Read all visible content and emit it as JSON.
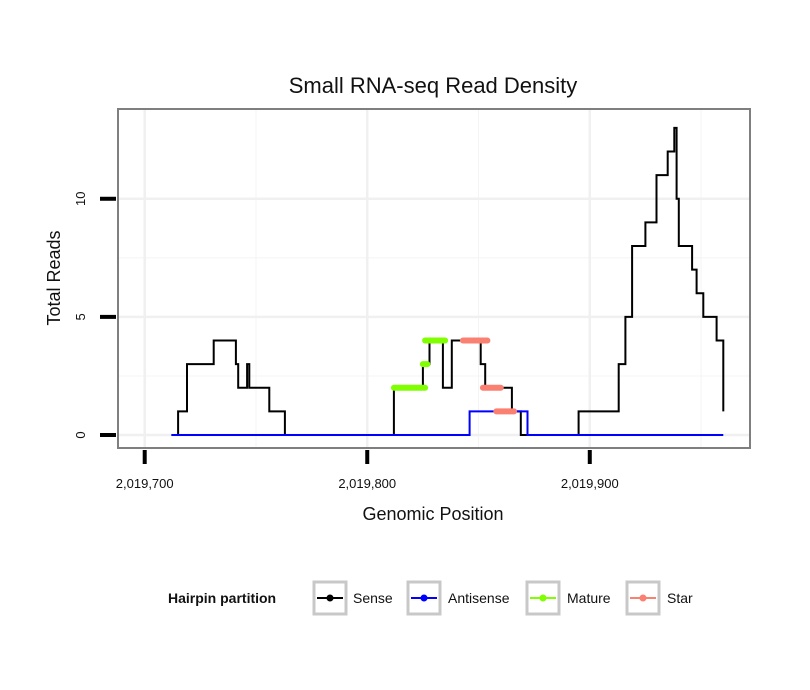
{
  "chart_data": {
    "type": "line",
    "title": "Small RNA-seq Read Density",
    "xlabel": "Genomic Position",
    "ylabel": "Total Reads",
    "xlim": [
      2019688,
      2019972
    ],
    "ylim": [
      -0.55,
      13.8
    ],
    "x_ticks": [
      {
        "value": 2019700,
        "label": "2,019,700"
      },
      {
        "value": 2019800,
        "label": "2,019,800"
      },
      {
        "value": 2019900,
        "label": "2,019,900"
      }
    ],
    "y_ticks": [
      {
        "value": 0,
        "label": "0"
      },
      {
        "value": 5,
        "label": "5"
      },
      {
        "value": 10,
        "label": "10"
      }
    ],
    "grid": true,
    "legend": {
      "title": "Hairpin partition",
      "position": "bottom",
      "entries": [
        {
          "name": "Sense",
          "color": "#000000"
        },
        {
          "name": "Antisense",
          "color": "#0000ff"
        },
        {
          "name": "Mature",
          "color": "#7fff00"
        },
        {
          "name": "Star",
          "color": "#fa8072"
        }
      ]
    },
    "series": [
      {
        "name": "Sense",
        "color": "#000000",
        "style": "step",
        "x": [
          2019712,
          2019715,
          2019719,
          2019722,
          2019731,
          2019734,
          2019741,
          2019742,
          2019743,
          2019746,
          2019747,
          2019748,
          2019756,
          2019763,
          2019812,
          2019825,
          2019828,
          2019833,
          2019834,
          2019835,
          2019838,
          2019851,
          2019853,
          2019859,
          2019865,
          2019869,
          2019882,
          2019895,
          2019913,
          2019916,
          2019919,
          2019922,
          2019925,
          2019928,
          2019930,
          2019935,
          2019936,
          2019937,
          2019938,
          2019939,
          2019940,
          2019942,
          2019946,
          2019947,
          2019948,
          2019951,
          2019953,
          2019957,
          2019960
        ],
        "y": [
          0,
          1,
          3,
          3,
          4,
          4,
          3,
          2,
          2,
          3,
          2,
          2,
          1,
          0,
          2,
          3,
          4,
          4,
          2,
          2,
          4,
          3,
          2,
          2,
          1,
          0,
          0,
          1,
          3,
          5,
          8,
          8,
          9,
          9,
          11,
          12,
          12,
          12,
          13,
          10,
          8,
          8,
          7,
          7,
          6,
          5,
          5,
          4,
          1
        ]
      },
      {
        "name": "Antisense",
        "color": "#0000ff",
        "style": "step",
        "x": [
          2019712,
          2019846,
          2019872,
          2019960
        ],
        "y": [
          0,
          1,
          0,
          0
        ]
      },
      {
        "name": "Mature",
        "color": "#7fff00",
        "style": "segments",
        "segments": [
          {
            "x0": 2019812,
            "x1": 2019826,
            "y": 2
          },
          {
            "x0": 2019825,
            "x1": 2019827,
            "y": 3
          },
          {
            "x0": 2019826,
            "x1": 2019835,
            "y": 4
          }
        ]
      },
      {
        "name": "Star",
        "color": "#fa8072",
        "style": "segments",
        "segments": [
          {
            "x0": 2019843,
            "x1": 2019854,
            "y": 4
          },
          {
            "x0": 2019852,
            "x1": 2019860,
            "y": 2
          },
          {
            "x0": 2019858,
            "x1": 2019866,
            "y": 1
          }
        ]
      }
    ]
  }
}
